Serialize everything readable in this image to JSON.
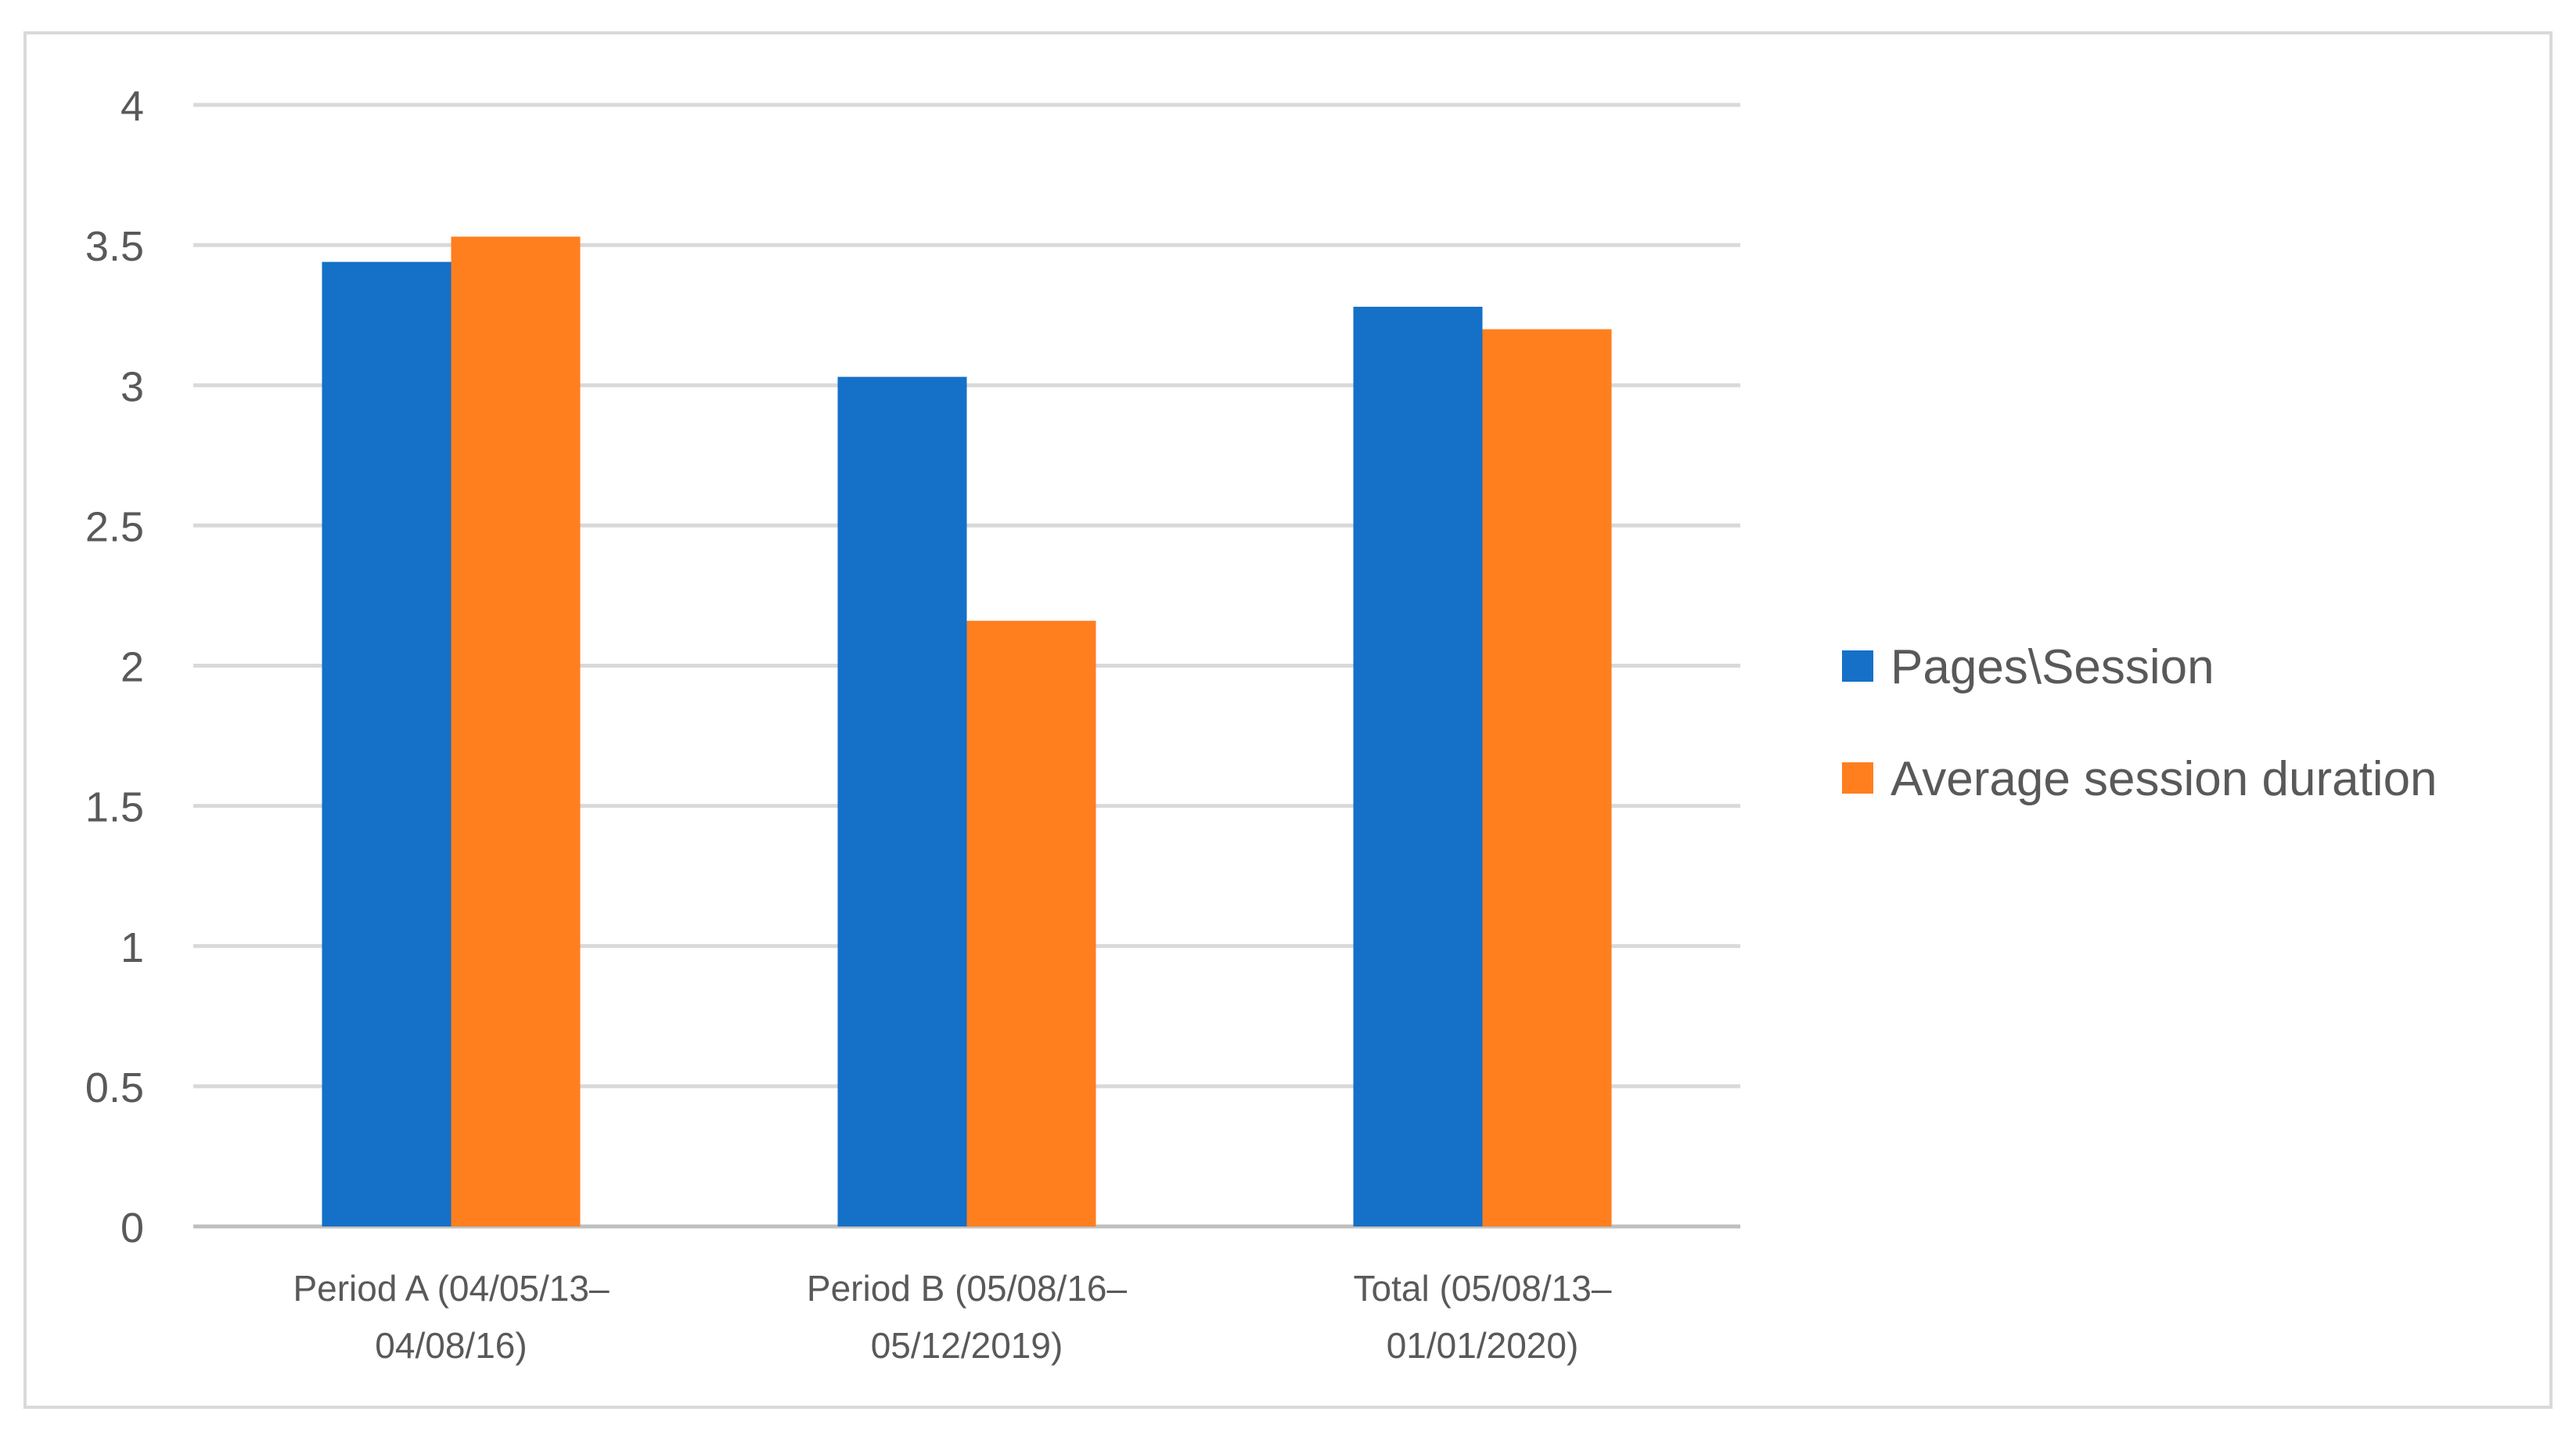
{
  "chart_data": {
    "type": "bar",
    "categories": [
      [
        "Period A (04/05/13–",
        "04/08/16)"
      ],
      [
        "Period B (05/08/16–",
        "05/12/2019)"
      ],
      [
        "Total (05/08/13–",
        "01/01/2020)"
      ]
    ],
    "series": [
      {
        "name": "Pages\\Session",
        "color": "#1570C8",
        "values": [
          3.44,
          3.03,
          3.28
        ]
      },
      {
        "name": "Average session duration",
        "color": "#FF7F1F",
        "values": [
          3.53,
          2.16,
          3.2
        ]
      }
    ],
    "yticks": [
      "0",
      "0.5",
      "1",
      "1.5",
      "2",
      "2.5",
      "3",
      "3.5",
      "4"
    ],
    "ylim": [
      0,
      4
    ],
    "grid": true,
    "legend_position": "right",
    "title": "",
    "xlabel": "",
    "ylabel": ""
  }
}
